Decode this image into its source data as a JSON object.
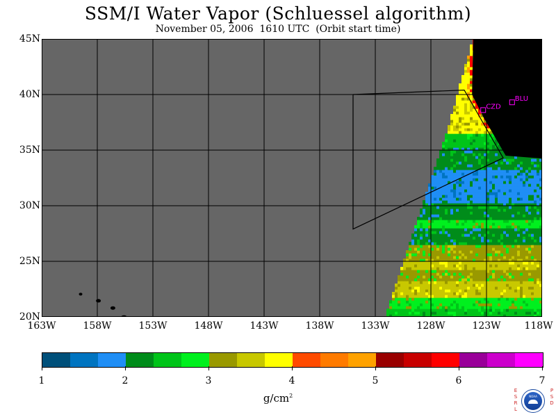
{
  "title": "SSM/I Water Vapor (Schluessel algorithm)",
  "subtitle": "November 05, 2006  1610 UTC  (Orbit start time)",
  "map": {
    "lat_labels": [
      "45N",
      "40N",
      "35N",
      "30N",
      "25N",
      "20N"
    ],
    "lon_labels": [
      "163W",
      "158W",
      "153W",
      "148W",
      "143W",
      "138W",
      "133W",
      "128W",
      "123W",
      "118W"
    ],
    "lat_range": [
      20,
      45
    ],
    "lon_range": [
      -163,
      -118
    ],
    "grid": true,
    "stations": [
      {
        "id": "CZD",
        "lon": -123.3,
        "lat": 38.6
      },
      {
        "id": "BLU",
        "lon": -120.7,
        "lat": 39.3
      }
    ]
  },
  "colorbar": {
    "units_base": "g/cm",
    "units_exp": "2",
    "tick_labels": [
      "1",
      "2",
      "3",
      "4",
      "5",
      "6",
      "7"
    ],
    "range": [
      1,
      7
    ],
    "colors": [
      "#00507a",
      "#0074c0",
      "#1f8ef5",
      "#008c1a",
      "#00c419",
      "#00f01e",
      "#999900",
      "#c8c800",
      "#ffff00",
      "#ff4b00",
      "#ff7b00",
      "#ffa200",
      "#990000",
      "#c80000",
      "#ff0000",
      "#990099",
      "#cc00cc",
      "#ff00ff"
    ]
  },
  "logo": {
    "left_letters": "ESRL",
    "right_letters": "PSD",
    "inner_text": "NOAA"
  }
}
